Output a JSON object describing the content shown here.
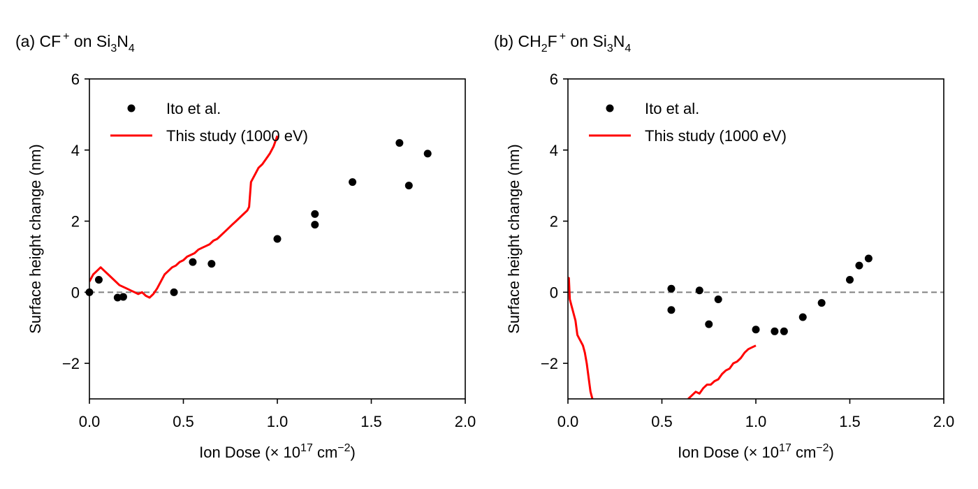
{
  "chart_data": [
    {
      "type": "scatter",
      "panel_label": "(a)",
      "title": {
        "ion": "CF",
        "ion_sub": "",
        "charge": "+",
        "on": " on Si",
        "sub1": "3",
        "mid": "N",
        "sub2": "4"
      },
      "xlabel": {
        "text": "Ion Dose (× 10",
        "exp": "17",
        "unit": " cm",
        "unit_exp": "−2",
        "close": ")"
      },
      "ylabel": "Surface height change (nm)",
      "xlim": [
        0,
        2.0
      ],
      "ylim": [
        -3,
        6
      ],
      "xticks": [
        "0.0",
        "0.5",
        "1.0",
        "1.5",
        "2.0"
      ],
      "yticks": [
        "−2",
        "0",
        "2",
        "4",
        "6"
      ],
      "ytick_values": [
        -2,
        0,
        2,
        4,
        6
      ],
      "xtick_values": [
        0,
        0.5,
        1.0,
        1.5,
        2.0
      ],
      "zero_line": true,
      "legend_position": "top-left",
      "series": [
        {
          "name": "Ito et al.",
          "kind": "scatter",
          "color": "#000000",
          "x": [
            0.0,
            0.05,
            0.15,
            0.18,
            0.45,
            0.55,
            0.65,
            1.0,
            1.2,
            1.2,
            1.4,
            1.65,
            1.7,
            1.8
          ],
          "y": [
            0.0,
            0.35,
            -0.15,
            -0.13,
            0.0,
            0.85,
            0.8,
            1.5,
            1.9,
            2.2,
            3.1,
            4.2,
            3.0,
            3.9
          ]
        },
        {
          "name": "This study (1000 eV)",
          "kind": "line",
          "color": "#ff0000",
          "x": [
            0.0,
            0.02,
            0.04,
            0.06,
            0.08,
            0.1,
            0.12,
            0.14,
            0.16,
            0.18,
            0.2,
            0.22,
            0.24,
            0.26,
            0.28,
            0.3,
            0.32,
            0.34,
            0.36,
            0.38,
            0.4,
            0.42,
            0.44,
            0.46,
            0.48,
            0.5,
            0.52,
            0.54,
            0.56,
            0.58,
            0.6,
            0.62,
            0.64,
            0.66,
            0.68,
            0.7,
            0.72,
            0.74,
            0.76,
            0.78,
            0.8,
            0.82,
            0.84,
            0.85,
            0.86,
            0.88,
            0.9,
            0.92,
            0.94,
            0.96,
            0.98,
            1.0
          ],
          "y": [
            0.3,
            0.5,
            0.6,
            0.7,
            0.6,
            0.5,
            0.4,
            0.3,
            0.2,
            0.15,
            0.1,
            0.05,
            0.0,
            -0.05,
            0.0,
            -0.1,
            -0.15,
            -0.05,
            0.1,
            0.3,
            0.5,
            0.6,
            0.7,
            0.75,
            0.85,
            0.9,
            1.0,
            1.05,
            1.1,
            1.2,
            1.25,
            1.3,
            1.35,
            1.45,
            1.5,
            1.6,
            1.7,
            1.8,
            1.9,
            2.0,
            2.1,
            2.2,
            2.3,
            2.4,
            3.1,
            3.3,
            3.5,
            3.6,
            3.75,
            3.9,
            4.1,
            4.4
          ]
        }
      ]
    },
    {
      "type": "scatter",
      "panel_label": "(b)",
      "title": {
        "ion": "CH",
        "ion_sub": "2",
        "charge": "+",
        "on": " on Si",
        "sub1": "3",
        "mid": "N",
        "sub2": "4",
        "ion_tail": "F"
      },
      "xlabel": {
        "text": "Ion Dose (× 10",
        "exp": "17",
        "unit": " cm",
        "unit_exp": "−2",
        "close": ")"
      },
      "ylabel": "Surface height change (nm)",
      "xlim": [
        0,
        2.0
      ],
      "ylim": [
        -3,
        6
      ],
      "xticks": [
        "0.0",
        "0.5",
        "1.0",
        "1.5",
        "2.0"
      ],
      "yticks": [
        "−2",
        "0",
        "2",
        "4",
        "6"
      ],
      "ytick_values": [
        -2,
        0,
        2,
        4,
        6
      ],
      "xtick_values": [
        0,
        0.5,
        1.0,
        1.5,
        2.0
      ],
      "zero_line": true,
      "legend_position": "top-left",
      "series": [
        {
          "name": "Ito et al.",
          "kind": "scatter",
          "color": "#000000",
          "x": [
            0.55,
            0.55,
            0.7,
            0.75,
            0.8,
            1.0,
            1.1,
            1.15,
            1.25,
            1.35,
            1.5,
            1.55,
            1.6
          ],
          "y": [
            0.1,
            -0.5,
            0.05,
            -0.9,
            -0.2,
            -1.05,
            -1.1,
            -1.1,
            -0.7,
            -0.3,
            0.35,
            0.75,
            0.95
          ]
        },
        {
          "name": "This study (1000 eV)",
          "kind": "line",
          "color": "#ff0000",
          "x": [
            0.0,
            0.005,
            0.01,
            0.02,
            0.03,
            0.04,
            0.05,
            0.06,
            0.07,
            0.08,
            0.09,
            0.1,
            0.11,
            0.12,
            0.13,
            0.64,
            0.66,
            0.68,
            0.7,
            0.72,
            0.74,
            0.76,
            0.78,
            0.8,
            0.82,
            0.84,
            0.86,
            0.88,
            0.9,
            0.92,
            0.94,
            0.96,
            0.98,
            1.0
          ],
          "y": [
            0.2,
            0.4,
            -0.2,
            -0.4,
            -0.6,
            -0.8,
            -1.2,
            -1.3,
            -1.4,
            -1.5,
            -1.7,
            -2.0,
            -2.4,
            -2.8,
            -3.0,
            -3.0,
            -2.9,
            -2.8,
            -2.85,
            -2.7,
            -2.6,
            -2.6,
            -2.5,
            -2.45,
            -2.3,
            -2.2,
            -2.15,
            -2.0,
            -1.95,
            -1.85,
            -1.7,
            -1.6,
            -1.55,
            -1.5
          ]
        }
      ]
    }
  ]
}
